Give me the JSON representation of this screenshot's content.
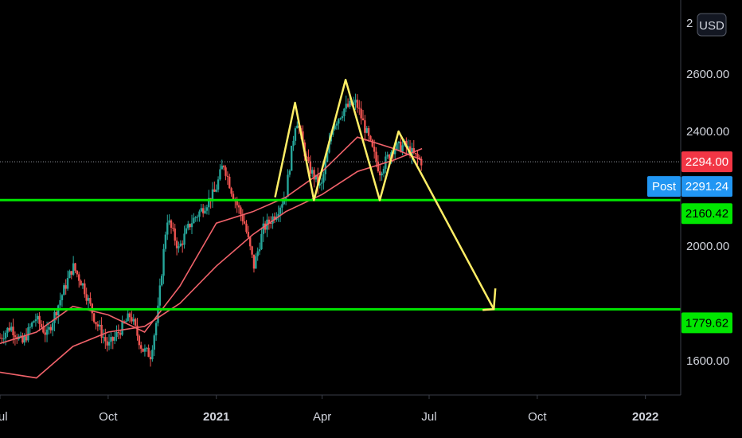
{
  "chart_data": {
    "type": "candlestick",
    "currency_label": "USD",
    "y_axis": {
      "min": 1500,
      "max": 2700,
      "ticks": [
        1600,
        1800,
        2000,
        2200,
        2400,
        2600
      ],
      "tick_labels": [
        "1600.00",
        "",
        "2000.00",
        "",
        "2400.00",
        "2600.00"
      ],
      "top_label": "2"
    },
    "x_axis": {
      "start": "2020-07-01",
      "end": "2022-01-31",
      "ticks": [
        {
          "date": "2020-07-01",
          "label": "Jul",
          "bold": false
        },
        {
          "date": "2020-10-01",
          "label": "Oct",
          "bold": false
        },
        {
          "date": "2021-01-01",
          "label": "2021",
          "bold": true
        },
        {
          "date": "2021-04-01",
          "label": "Apr",
          "bold": false
        },
        {
          "date": "2021-07-01",
          "label": "Jul",
          "bold": false
        },
        {
          "date": "2021-10-01",
          "label": "Oct",
          "bold": false
        },
        {
          "date": "2022-01-01",
          "label": "2022",
          "bold": true
        }
      ]
    },
    "horizontal_levels": [
      {
        "name": "support-level",
        "value": 2160.42,
        "label": "2160.42",
        "color": "#00e600"
      },
      {
        "name": "target-level",
        "value": 1779.62,
        "label": "1779.62",
        "color": "#00e600"
      }
    ],
    "last_price": {
      "value": 2294.0,
      "label": "2294.00",
      "color": "#f23645"
    },
    "post_price": {
      "value": 2291.24,
      "label": "2291.24",
      "tag": "Post",
      "color": "#2196f3"
    },
    "price_path": [
      {
        "date": "2020-07-01",
        "value": 1680
      },
      {
        "date": "2020-07-10",
        "value": 1720
      },
      {
        "date": "2020-07-20",
        "value": 1660
      },
      {
        "date": "2020-07-31",
        "value": 1750
      },
      {
        "date": "2020-08-10",
        "value": 1690
      },
      {
        "date": "2020-08-20",
        "value": 1800
      },
      {
        "date": "2020-09-01",
        "value": 1930
      },
      {
        "date": "2020-09-10",
        "value": 1860
      },
      {
        "date": "2020-09-20",
        "value": 1740
      },
      {
        "date": "2020-10-01",
        "value": 1650
      },
      {
        "date": "2020-10-10",
        "value": 1700
      },
      {
        "date": "2020-10-20",
        "value": 1760
      },
      {
        "date": "2020-10-30",
        "value": 1640
      },
      {
        "date": "2020-11-06",
        "value": 1620
      },
      {
        "date": "2020-11-12",
        "value": 1760
      },
      {
        "date": "2020-11-20",
        "value": 2100
      },
      {
        "date": "2020-11-30",
        "value": 1990
      },
      {
        "date": "2020-12-10",
        "value": 2080
      },
      {
        "date": "2020-12-20",
        "value": 2130
      },
      {
        "date": "2020-12-31",
        "value": 2190
      },
      {
        "date": "2021-01-07",
        "value": 2290
      },
      {
        "date": "2021-01-15",
        "value": 2180
      },
      {
        "date": "2021-01-25",
        "value": 2080
      },
      {
        "date": "2021-02-02",
        "value": 1930
      },
      {
        "date": "2021-02-10",
        "value": 2060
      },
      {
        "date": "2021-02-20",
        "value": 2110
      },
      {
        "date": "2021-03-01",
        "value": 2180
      },
      {
        "date": "2021-03-10",
        "value": 2450
      },
      {
        "date": "2021-03-20",
        "value": 2280
      },
      {
        "date": "2021-03-31",
        "value": 2200
      },
      {
        "date": "2021-04-10",
        "value": 2420
      },
      {
        "date": "2021-04-20",
        "value": 2480
      },
      {
        "date": "2021-04-30",
        "value": 2500
      },
      {
        "date": "2021-05-10",
        "value": 2380
      },
      {
        "date": "2021-05-20",
        "value": 2260
      },
      {
        "date": "2021-05-31",
        "value": 2340
      },
      {
        "date": "2021-06-10",
        "value": 2350
      },
      {
        "date": "2021-06-20",
        "value": 2310
      },
      {
        "date": "2021-06-25",
        "value": 2294
      }
    ],
    "ma_fast": [
      {
        "date": "2020-07-01",
        "value": 1660
      },
      {
        "date": "2020-08-01",
        "value": 1700
      },
      {
        "date": "2020-09-01",
        "value": 1790
      },
      {
        "date": "2020-10-01",
        "value": 1760
      },
      {
        "date": "2020-11-01",
        "value": 1700
      },
      {
        "date": "2020-12-01",
        "value": 1860
      },
      {
        "date": "2021-01-01",
        "value": 2080
      },
      {
        "date": "2021-02-01",
        "value": 2120
      },
      {
        "date": "2021-03-01",
        "value": 2170
      },
      {
        "date": "2021-04-01",
        "value": 2260
      },
      {
        "date": "2021-05-01",
        "value": 2380
      },
      {
        "date": "2021-06-01",
        "value": 2340
      },
      {
        "date": "2021-06-25",
        "value": 2300
      }
    ],
    "ma_slow": [
      {
        "date": "2020-07-01",
        "value": 1560
      },
      {
        "date": "2020-08-01",
        "value": 1540
      },
      {
        "date": "2020-09-01",
        "value": 1650
      },
      {
        "date": "2020-10-01",
        "value": 1700
      },
      {
        "date": "2020-11-01",
        "value": 1720
      },
      {
        "date": "2020-12-01",
        "value": 1800
      },
      {
        "date": "2021-01-01",
        "value": 1930
      },
      {
        "date": "2021-02-01",
        "value": 2040
      },
      {
        "date": "2021-03-01",
        "value": 2120
      },
      {
        "date": "2021-04-01",
        "value": 2180
      },
      {
        "date": "2021-05-01",
        "value": 2260
      },
      {
        "date": "2021-06-01",
        "value": 2300
      },
      {
        "date": "2021-06-25",
        "value": 2340
      }
    ],
    "pattern_drawing": [
      {
        "date": "2021-02-20",
        "value": 2170
      },
      {
        "date": "2021-03-09",
        "value": 2500
      },
      {
        "date": "2021-03-25",
        "value": 2160
      },
      {
        "date": "2021-04-21",
        "value": 2580
      },
      {
        "date": "2021-05-20",
        "value": 2160
      },
      {
        "date": "2021-06-05",
        "value": 2400
      },
      {
        "date": "2021-08-25",
        "value": 1780
      }
    ],
    "colors": {
      "background": "#000000",
      "bull": "#26a69a",
      "bear": "#ef5350",
      "ma_fast": "#f0626a",
      "ma_slow": "#f0626a",
      "pattern": "#ffee66",
      "axis": "#d1d4dc",
      "grid": "#1e222d"
    }
  }
}
